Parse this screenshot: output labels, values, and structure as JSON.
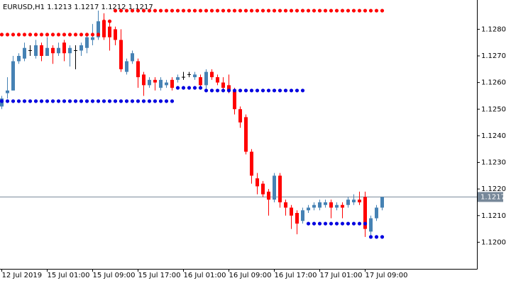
{
  "chart_data": {
    "type": "candlestick",
    "title": "EURUSD,H1  1.1213 1.1217 1.1212 1.1217",
    "categories": [
      "12 Jul 2019",
      null,
      null,
      null,
      null,
      null,
      null,
      null,
      "15 Jul 01:00",
      null,
      null,
      null,
      null,
      null,
      null,
      null,
      "15 Jul 09:00",
      null,
      null,
      null,
      null,
      null,
      null,
      null,
      "15 Jul 17:00",
      null,
      null,
      null,
      null,
      null,
      null,
      null,
      "16 Jul 01:00",
      null,
      null,
      null,
      null,
      null,
      null,
      null,
      "16 Jul 09:00",
      null,
      null,
      null,
      null,
      null,
      null,
      null,
      "16 Jul 17:00",
      null,
      null,
      null,
      null,
      null,
      null,
      null,
      "17 Jul 01:00",
      null,
      null,
      null,
      null,
      null,
      null,
      null,
      "17 Jul 09:00",
      null,
      null,
      null
    ],
    "open": [
      1.1251,
      1.1256,
      1.1257,
      1.1268,
      1.1269,
      1.1272,
      1.127,
      1.1274,
      1.127,
      1.1273,
      1.1271,
      1.1275,
      1.1271,
      1.1272,
      1.1272,
      1.1273,
      1.1276,
      1.1277,
      1.1283,
      1.1281,
      1.128,
      1.1276,
      1.1264,
      1.1268,
      1.1268,
      1.1263,
      1.1259,
      1.1261,
      1.1258,
      1.1259,
      1.1261,
      1.1261,
      1.1262,
      1.1263,
      1.1262,
      1.1262,
      1.1259,
      1.1264,
      1.1262,
      1.126,
      1.1259,
      1.1257,
      1.125,
      1.1247,
      1.1234,
      1.1224,
      1.1222,
      1.1219,
      1.1216,
      1.1225,
      1.1215,
      1.1213,
      1.1211,
      1.1208,
      1.1212,
      1.1213,
      1.1213,
      1.1214,
      1.1215,
      1.1213,
      1.1214,
      1.1214,
      1.1215,
      1.1216,
      1.1217,
      1.1204,
      1.1209,
      1.1213
    ],
    "high": [
      1.1255,
      1.1262,
      1.127,
      1.1271,
      1.1275,
      1.1274,
      1.1276,
      1.1275,
      1.1277,
      1.1274,
      1.1275,
      1.1276,
      1.1274,
      1.1274,
      1.1275,
      1.1278,
      1.1282,
      1.1287,
      1.1286,
      1.1283,
      1.1281,
      1.128,
      1.1269,
      1.1272,
      1.1269,
      1.1264,
      1.1262,
      1.1262,
      1.1262,
      1.1261,
      1.1262,
      1.1263,
      1.1264,
      1.1264,
      1.1264,
      1.1263,
      1.1265,
      1.1265,
      1.1263,
      1.1262,
      1.1263,
      1.1258,
      1.1251,
      1.1248,
      1.1235,
      1.1226,
      1.1223,
      1.122,
      1.1226,
      1.1226,
      1.1216,
      1.1214,
      1.1212,
      1.1213,
      1.1214,
      1.1215,
      1.1216,
      1.1216,
      1.1216,
      1.1215,
      1.1215,
      1.1217,
      1.1218,
      1.1219,
      1.1219,
      1.121,
      1.1214,
      1.1217
    ],
    "low": [
      1.125,
      1.1254,
      1.1257,
      1.1267,
      1.1268,
      1.127,
      1.1269,
      1.1268,
      1.127,
      1.1267,
      1.127,
      1.1268,
      1.1266,
      1.1265,
      1.127,
      1.1271,
      1.1274,
      1.1276,
      1.1276,
      1.1272,
      1.1274,
      1.1264,
      1.1263,
      1.1267,
      1.1258,
      1.1255,
      1.1258,
      1.1257,
      1.1257,
      1.1258,
      1.1257,
      1.126,
      1.1261,
      1.1262,
      1.1261,
      1.1258,
      1.1257,
      1.1261,
      1.1259,
      1.1257,
      1.1256,
      1.1248,
      1.1243,
      1.1233,
      1.1222,
      1.1218,
      1.1217,
      1.121,
      1.1215,
      1.1213,
      1.121,
      1.1205,
      1.1203,
      1.1207,
      1.1211,
      1.1212,
      1.1212,
      1.1213,
      1.1209,
      1.1212,
      1.1209,
      1.1213,
      1.1214,
      1.1214,
      1.1202,
      1.1202,
      1.1208,
      1.1212
    ],
    "close": [
      1.1254,
      1.1257,
      1.1268,
      1.127,
      1.1273,
      1.1272,
      1.1274,
      1.127,
      1.1273,
      1.1271,
      1.1273,
      1.1271,
      1.1273,
      1.1272,
      1.1274,
      1.1277,
      1.1277,
      1.1283,
      1.1277,
      1.1277,
      1.1276,
      1.1265,
      1.1268,
      1.1271,
      1.1262,
      1.1259,
      1.1261,
      1.126,
      1.1261,
      1.126,
      1.1258,
      1.1262,
      1.1262,
      1.1263,
      1.1263,
      1.1259,
      1.1264,
      1.1262,
      1.126,
      1.1258,
      1.1257,
      1.125,
      1.1245,
      1.1234,
      1.1225,
      1.1221,
      1.1218,
      1.1216,
      1.1225,
      1.1215,
      1.1213,
      1.121,
      1.1207,
      1.1212,
      1.1213,
      1.1214,
      1.1215,
      1.1215,
      1.1213,
      1.1214,
      1.1213,
      1.1216,
      1.1216,
      1.1215,
      1.1205,
      1.1209,
      1.1213,
      1.1217
    ],
    "up_color": "#4682b4",
    "down_color": "#ff0000",
    "doji_color": "#000000",
    "overlays": [
      {
        "color": "#ff0000",
        "values": [
          1.1278,
          1.1278,
          1.1278,
          1.1278,
          1.1278,
          1.1278,
          1.1278,
          1.1278,
          1.1278,
          1.1278,
          1.1278,
          1.1278,
          1.1278,
          1.1278,
          1.1278,
          1.1278,
          1.1278,
          1.1278,
          1.1283,
          1.1283,
          1.1287,
          1.1287,
          1.1287,
          1.1287,
          1.1287,
          1.1287,
          1.1287,
          1.1287,
          1.1287,
          1.1287,
          1.1287,
          1.1287,
          1.1287,
          1.1287,
          1.1287,
          1.1287,
          1.1287,
          1.1287,
          1.1287,
          1.1287,
          1.1287,
          1.1287,
          1.1287,
          1.1287,
          1.1287,
          1.1287,
          1.1287,
          1.1287,
          1.1287,
          1.1287,
          1.1287,
          1.1287,
          1.1287,
          1.1287,
          1.1287,
          1.1287,
          1.1287,
          1.1287,
          1.1287,
          1.1287,
          1.1287,
          1.1287,
          1.1287,
          1.1287,
          1.1287,
          1.1287,
          1.1287,
          1.1287
        ]
      },
      {
        "color": "#0000e0",
        "values": [
          1.1253,
          1.1253,
          1.1253,
          1.1253,
          1.1253,
          1.1253,
          1.1253,
          1.1253,
          1.1253,
          1.1253,
          1.1253,
          1.1253,
          1.1253,
          1.1253,
          1.1253,
          1.1253,
          1.1253,
          1.1253,
          1.1253,
          1.1253,
          1.1253,
          1.1253,
          1.1253,
          1.1253,
          1.1253,
          1.1253,
          1.1253,
          1.1253,
          1.1253,
          1.1253,
          1.1253,
          1.1258,
          1.1258,
          1.1258,
          1.1258,
          1.1258,
          1.1257,
          1.1257,
          1.1257,
          1.1257,
          1.1257,
          1.1257,
          1.1257,
          1.1257,
          1.1257,
          1.1257,
          1.1257,
          1.1257,
          1.1257,
          1.1257,
          1.1257,
          1.1257,
          1.1257,
          1.1257,
          1.1207,
          1.1207,
          1.1207,
          1.1207,
          1.1207,
          1.1207,
          1.1207,
          1.1207,
          1.1207,
          1.1207,
          1.1207,
          1.1202,
          1.1202,
          1.1202
        ]
      }
    ],
    "last_price": 1.1217,
    "last_price_color": "#778899",
    "ylim": [
      1.119,
      1.1291
    ],
    "yticks": [
      {
        "value": 1.12,
        "label": "1.1200"
      },
      {
        "value": 1.121,
        "label": "1.1210"
      },
      {
        "value": 1.122,
        "label": "1.1220"
      },
      {
        "value": 1.123,
        "label": "1.1230"
      },
      {
        "value": 1.124,
        "label": "1.1240"
      },
      {
        "value": 1.125,
        "label": "1.1250"
      },
      {
        "value": 1.126,
        "label": "1.1260"
      },
      {
        "value": 1.127,
        "label": "1.1270"
      },
      {
        "value": 1.128,
        "label": "1.1280"
      }
    ],
    "grid": false
  }
}
